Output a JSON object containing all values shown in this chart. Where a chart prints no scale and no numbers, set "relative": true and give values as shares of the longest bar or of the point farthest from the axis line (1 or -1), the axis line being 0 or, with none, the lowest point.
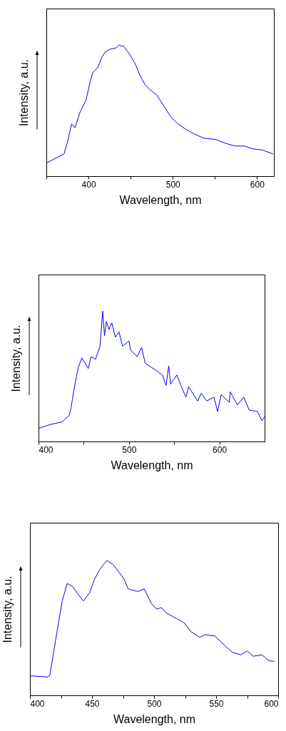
{
  "chart_data": [
    {
      "type": "line",
      "relative": true,
      "xlabel": "Wavelength, nm",
      "ylabel": "Intensity, a.u.",
      "xlim": [
        350,
        620
      ],
      "xticks": [
        {
          "value": 350,
          "label": null
        },
        400,
        {
          "value": 450,
          "label": null
        },
        500,
        {
          "value": 550,
          "label": null
        },
        600
      ],
      "tick_labels": "x",
      "x": [
        350,
        371,
        375,
        380,
        384,
        390,
        397,
        402,
        405,
        411,
        416,
        420,
        426,
        433,
        436,
        442,
        450,
        456,
        461,
        467,
        473,
        481,
        490,
        498,
        506,
        515,
        526,
        537,
        551,
        563,
        574,
        585,
        594,
        606,
        619
      ],
      "series": [
        {
          "color": "#0000ff",
          "values": [
            0.1,
            0.17,
            0.26,
            0.4,
            0.37,
            0.49,
            0.58,
            0.72,
            0.79,
            0.83,
            0.91,
            0.95,
            0.97,
            0.98,
            1.0,
            0.99,
            0.92,
            0.85,
            0.77,
            0.7,
            0.66,
            0.62,
            0.53,
            0.45,
            0.4,
            0.36,
            0.32,
            0.29,
            0.28,
            0.25,
            0.23,
            0.23,
            0.21,
            0.2,
            0.17
          ]
        }
      ]
    },
    {
      "type": "line",
      "relative": true,
      "xlabel": "Wavelength, nm",
      "ylabel": "Intensity, a.u.",
      "xlim": [
        400,
        650
      ],
      "xticks": [
        400,
        {
          "value": 450,
          "label": null
        },
        500,
        {
          "value": 550,
          "label": null
        },
        600
      ],
      "tick_labels": "x",
      "x": [
        400,
        413,
        426,
        434,
        436,
        440,
        444,
        448,
        455,
        458,
        463,
        468,
        471,
        473,
        475,
        478,
        481,
        485,
        489,
        493,
        500,
        502,
        509,
        514,
        518,
        529,
        537,
        541,
        544,
        546,
        553,
        558,
        563,
        566,
        576,
        580,
        586,
        594,
        598,
        602,
        611,
        612,
        620,
        627,
        633,
        642,
        647,
        650
      ],
      "series": [
        {
          "color": "#0000ff",
          "values": [
            0.1,
            0.13,
            0.15,
            0.2,
            0.26,
            0.43,
            0.57,
            0.64,
            0.56,
            0.65,
            0.63,
            0.73,
            1.0,
            0.81,
            0.92,
            0.86,
            0.91,
            0.8,
            0.84,
            0.73,
            0.77,
            0.7,
            0.65,
            0.72,
            0.6,
            0.55,
            0.51,
            0.43,
            0.58,
            0.44,
            0.51,
            0.42,
            0.34,
            0.42,
            0.31,
            0.37,
            0.31,
            0.34,
            0.23,
            0.36,
            0.3,
            0.38,
            0.28,
            0.34,
            0.24,
            0.23,
            0.16,
            0.19
          ]
        }
      ]
    },
    {
      "type": "line",
      "relative": true,
      "xlabel": "Wavelength, nm",
      "ylabel": "Intensity, a.u.",
      "xlim": [
        400,
        600
      ],
      "xticks": [
        400,
        {
          "value": 425,
          "label": null
        },
        450,
        {
          "value": 475,
          "label": null
        },
        500,
        {
          "value": 525,
          "label": null
        },
        550,
        {
          "value": 575,
          "label": null
        },
        600
      ],
      "tick_labels": "x",
      "x": [
        400,
        414,
        416,
        420.7,
        426,
        430,
        434,
        438,
        443,
        448,
        452,
        456,
        462,
        467,
        472,
        476,
        479,
        487,
        492,
        498,
        502,
        506,
        510,
        518,
        524,
        530,
        537,
        541,
        549,
        557,
        563,
        570,
        575,
        580,
        587,
        592,
        597
      ],
      "series": [
        {
          "color": "#0000ff",
          "values": [
            0.145,
            0.136,
            0.149,
            0.41,
            0.7,
            0.83,
            0.81,
            0.76,
            0.7,
            0.76,
            0.86,
            0.93,
            1.0,
            0.97,
            0.91,
            0.86,
            0.79,
            0.77,
            0.79,
            0.68,
            0.64,
            0.65,
            0.61,
            0.57,
            0.54,
            0.47,
            0.43,
            0.45,
            0.44,
            0.37,
            0.32,
            0.3,
            0.33,
            0.29,
            0.3,
            0.26,
            0.25
          ]
        }
      ]
    }
  ]
}
